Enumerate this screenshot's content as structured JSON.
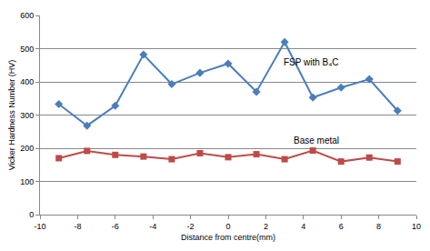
{
  "chart_data": {
    "type": "line",
    "x_label": "Distance from centre(mm)",
    "y_label": "Vicker Hardness Number (HV)",
    "x": [
      -9,
      -7.5,
      -6,
      -4.5,
      -3,
      -1.5,
      0,
      1.5,
      3,
      4.5,
      6,
      7.5,
      9
    ],
    "series": [
      {
        "name": "FSP with B₄C",
        "color": "#4a7ebb",
        "marker": "diamond",
        "values": [
          333,
          268,
          328,
          482,
          393,
          427,
          455,
          370,
          520,
          353,
          383,
          408,
          313
        ]
      },
      {
        "name": "Base metal",
        "color": "#be4b48",
        "marker": "square",
        "values": [
          170,
          192,
          180,
          175,
          167,
          185,
          173,
          182,
          167,
          193,
          160,
          172,
          160
        ]
      }
    ],
    "xlim": [
      -10,
      10
    ],
    "xticks": [
      -10,
      -8,
      -6,
      -4,
      -2,
      0,
      2,
      4,
      6,
      8,
      10
    ],
    "ylim": [
      0,
      600
    ],
    "yticks": [
      0,
      100,
      200,
      300,
      400,
      500,
      600
    ],
    "grid": true
  }
}
